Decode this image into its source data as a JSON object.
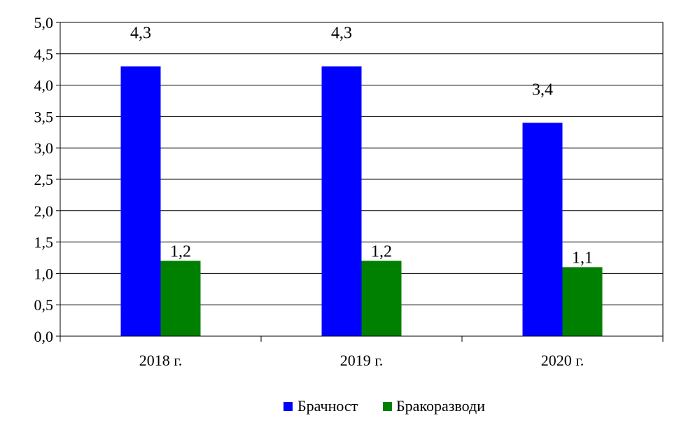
{
  "chart_data": {
    "type": "bar",
    "categories": [
      "2018 г.",
      "2019 г.",
      "2020 г."
    ],
    "series": [
      {
        "name": "Брачност",
        "values": [
          4.3,
          4.3,
          3.4
        ],
        "labels": [
          "4,3",
          "4,3",
          "3,4"
        ],
        "color": "#0000FF"
      },
      {
        "name": "Бракоразводи",
        "values": [
          1.2,
          1.2,
          1.1
        ],
        "labels": [
          "1,2",
          "1,2",
          "1,1"
        ],
        "color": "#008000"
      }
    ],
    "ylim": [
      0,
      5
    ],
    "yticks": [
      0,
      0.5,
      1,
      1.5,
      2,
      2.5,
      3,
      3.5,
      4,
      4.5,
      5
    ],
    "ytick_labels": [
      "0,0",
      "0,5",
      "1,0",
      "1,5",
      "2,0",
      "2,5",
      "3,0",
      "3,5",
      "4,0",
      "4,5",
      "5,0"
    ],
    "grid": true,
    "legend_position": "bottom"
  }
}
